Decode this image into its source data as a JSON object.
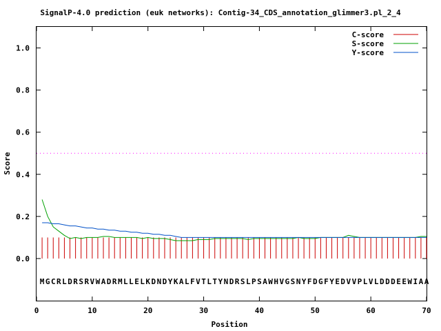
{
  "chart_data": {
    "type": "line",
    "title": "SignalP-4.0 prediction (euk networks): Contig-34_CDS_annotation_glimmer3.pl_2_4",
    "xlabel": "Position",
    "ylabel": "Score",
    "xlim": [
      0,
      70
    ],
    "ylim": [
      -0.2,
      1.1
    ],
    "x_ticks": [
      0,
      10,
      20,
      30,
      40,
      50,
      60,
      70
    ],
    "y_ticks": [
      0.0,
      0.2,
      0.4,
      0.6,
      0.8,
      1.0
    ],
    "x_tick_labels": [
      "0",
      "10",
      "20",
      "30",
      "40",
      "50",
      "60",
      "70"
    ],
    "y_tick_labels": [
      "0.0",
      "0.2",
      "0.4",
      "0.6",
      "0.8",
      "1.0"
    ],
    "threshold": 0.5,
    "sequence": "MGCRLDRSRVWADRMLLELKDNDYKALFVTLTYNDRSLPSAWHVGSNYFDGFYEDVVPLVLDDDEEWIAA",
    "legend_position": "top-right",
    "grid": false,
    "series": [
      {
        "name": "C-score",
        "style": "impulses",
        "color": "#cc0000",
        "x": [
          1,
          2,
          3,
          4,
          5,
          6,
          7,
          8,
          9,
          10,
          11,
          12,
          13,
          14,
          15,
          16,
          17,
          18,
          19,
          20,
          21,
          22,
          23,
          24,
          25,
          26,
          27,
          28,
          29,
          30,
          31,
          32,
          33,
          34,
          35,
          36,
          37,
          38,
          39,
          40,
          41,
          42,
          43,
          44,
          45,
          46,
          47,
          48,
          49,
          50,
          51,
          52,
          53,
          54,
          55,
          56,
          57,
          58,
          59,
          60,
          61,
          62,
          63,
          64,
          65,
          66,
          67,
          68,
          69,
          70
        ],
        "values": [
          0.1,
          0.1,
          0.1,
          0.1,
          0.1,
          0.1,
          0.1,
          0.1,
          0.1,
          0.1,
          0.1,
          0.1,
          0.1,
          0.1,
          0.1,
          0.1,
          0.1,
          0.1,
          0.1,
          0.1,
          0.1,
          0.1,
          0.1,
          0.1,
          0.1,
          0.1,
          0.1,
          0.1,
          0.1,
          0.1,
          0.1,
          0.1,
          0.1,
          0.1,
          0.1,
          0.1,
          0.1,
          0.1,
          0.1,
          0.1,
          0.1,
          0.1,
          0.1,
          0.1,
          0.1,
          0.1,
          0.1,
          0.1,
          0.1,
          0.1,
          0.1,
          0.1,
          0.1,
          0.1,
          0.1,
          0.1,
          0.1,
          0.1,
          0.1,
          0.1,
          0.1,
          0.1,
          0.1,
          0.1,
          0.1,
          0.1,
          0.1,
          0.1,
          0.1,
          0.1
        ]
      },
      {
        "name": "S-score",
        "style": "line",
        "color": "#00a000",
        "x": [
          1,
          2,
          3,
          4,
          5,
          6,
          7,
          8,
          9,
          10,
          11,
          12,
          13,
          14,
          15,
          16,
          17,
          18,
          19,
          20,
          21,
          22,
          23,
          24,
          25,
          26,
          27,
          28,
          29,
          30,
          31,
          32,
          33,
          34,
          35,
          36,
          37,
          38,
          39,
          40,
          41,
          42,
          43,
          44,
          45,
          46,
          47,
          48,
          49,
          50,
          51,
          52,
          53,
          54,
          55,
          56,
          57,
          58,
          59,
          60,
          61,
          62,
          63,
          64,
          65,
          66,
          67,
          68,
          69,
          70
        ],
        "values": [
          0.28,
          0.2,
          0.15,
          0.13,
          0.11,
          0.095,
          0.1,
          0.095,
          0.1,
          0.1,
          0.1,
          0.105,
          0.105,
          0.1,
          0.1,
          0.1,
          0.1,
          0.1,
          0.095,
          0.1,
          0.095,
          0.095,
          0.095,
          0.09,
          0.085,
          0.085,
          0.085,
          0.085,
          0.09,
          0.09,
          0.09,
          0.095,
          0.095,
          0.095,
          0.095,
          0.095,
          0.095,
          0.09,
          0.095,
          0.095,
          0.095,
          0.095,
          0.095,
          0.095,
          0.095,
          0.095,
          0.1,
          0.095,
          0.095,
          0.095,
          0.1,
          0.1,
          0.1,
          0.1,
          0.1,
          0.11,
          0.105,
          0.1,
          0.1,
          0.1,
          0.1,
          0.1,
          0.1,
          0.1,
          0.1,
          0.1,
          0.1,
          0.1,
          0.105,
          0.105
        ]
      },
      {
        "name": "Y-score",
        "style": "line",
        "color": "#0050c8",
        "x": [
          1,
          2,
          3,
          4,
          5,
          6,
          7,
          8,
          9,
          10,
          11,
          12,
          13,
          14,
          15,
          16,
          17,
          18,
          19,
          20,
          21,
          22,
          23,
          24,
          25,
          26,
          27,
          28,
          29,
          30,
          31,
          32,
          33,
          34,
          35,
          36,
          37,
          38,
          39,
          40,
          41,
          42,
          43,
          44,
          45,
          46,
          47,
          48,
          49,
          50,
          51,
          52,
          53,
          54,
          55,
          56,
          57,
          58,
          59,
          60,
          61,
          62,
          63,
          64,
          65,
          66,
          67,
          68,
          69,
          70
        ],
        "values": [
          0.17,
          0.17,
          0.165,
          0.165,
          0.16,
          0.155,
          0.155,
          0.15,
          0.145,
          0.145,
          0.14,
          0.14,
          0.135,
          0.135,
          0.13,
          0.13,
          0.125,
          0.125,
          0.12,
          0.12,
          0.115,
          0.115,
          0.11,
          0.11,
          0.105,
          0.1,
          0.1,
          0.1,
          0.1,
          0.1,
          0.1,
          0.1,
          0.1,
          0.1,
          0.1,
          0.1,
          0.1,
          0.1,
          0.1,
          0.1,
          0.1,
          0.1,
          0.1,
          0.1,
          0.1,
          0.1,
          0.1,
          0.1,
          0.1,
          0.1,
          0.1,
          0.1,
          0.1,
          0.1,
          0.1,
          0.1,
          0.1,
          0.1,
          0.1,
          0.1,
          0.1,
          0.1,
          0.1,
          0.1,
          0.1,
          0.1,
          0.1,
          0.1,
          0.1,
          0.1
        ]
      }
    ]
  }
}
